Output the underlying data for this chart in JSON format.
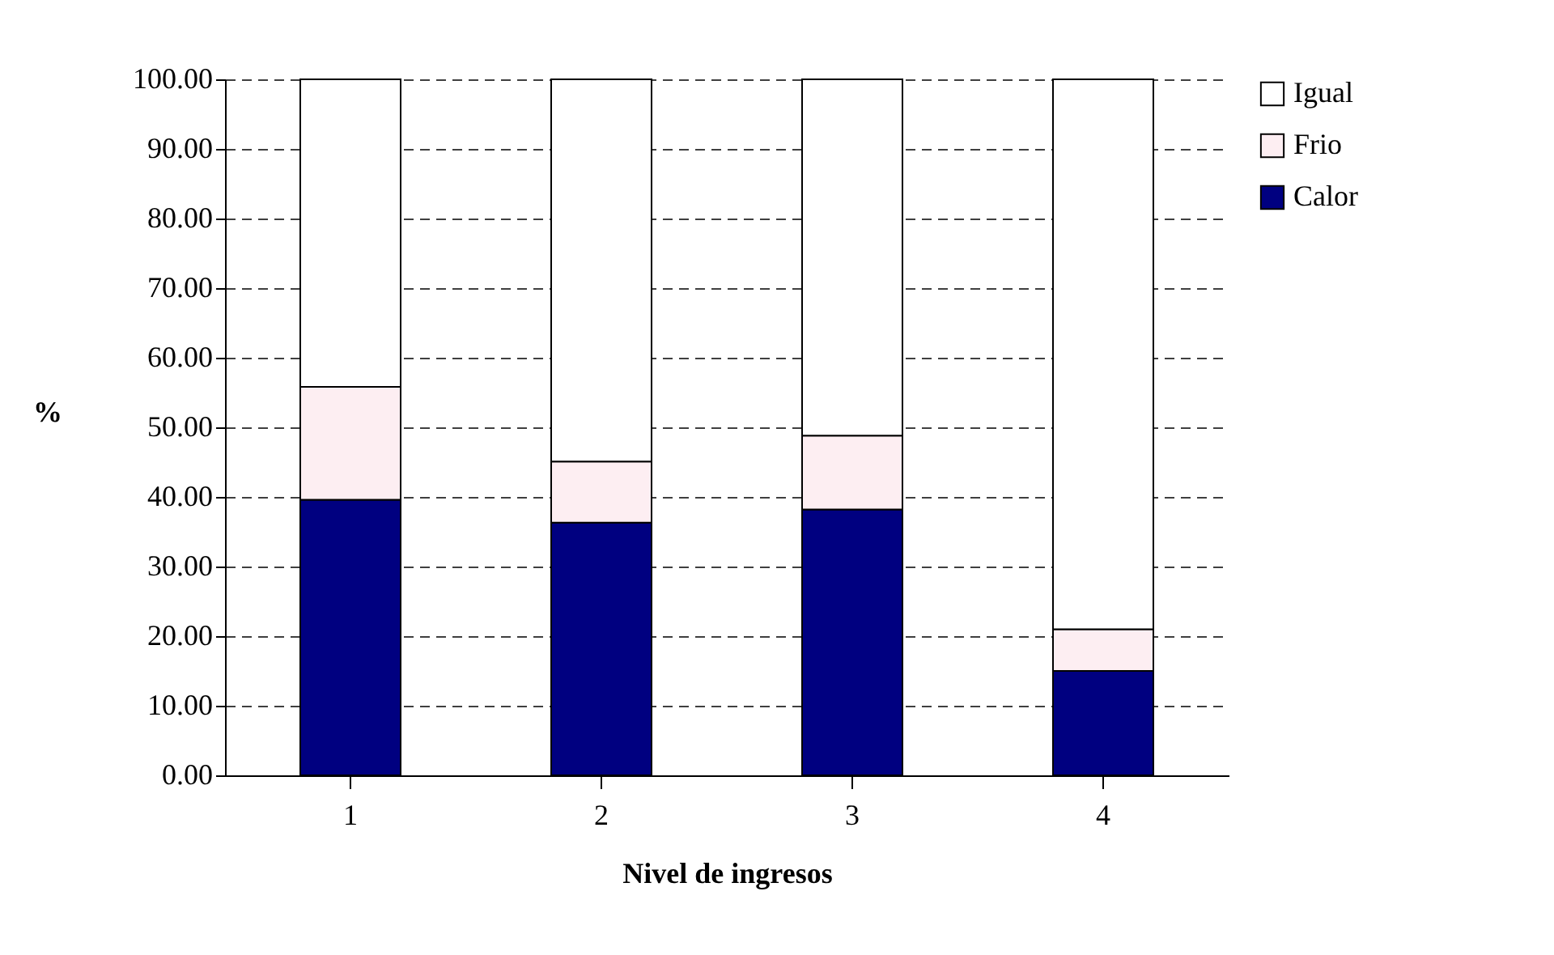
{
  "chart_data": {
    "type": "bar",
    "xlabel": "Nivel de ingresos",
    "ylabel": "%",
    "categories": [
      "1",
      "2",
      "3",
      "4"
    ],
    "stacked": true,
    "series": [
      {
        "name": "Calor",
        "color": "#000080",
        "values": [
          39.6,
          36.3,
          38.2,
          15.0
        ]
      },
      {
        "name": "Frio",
        "color": "#fdeef2",
        "values": [
          16.2,
          8.8,
          10.6,
          6.0
        ]
      },
      {
        "name": "Igual",
        "color": "#ffffff",
        "values": [
          44.2,
          54.9,
          51.2,
          79.0
        ]
      }
    ],
    "ylim": [
      0,
      100
    ],
    "yticks": [
      {
        "value": 0,
        "label": "0.00"
      },
      {
        "value": 10,
        "label": "10.00"
      },
      {
        "value": 20,
        "label": "20.00"
      },
      {
        "value": 30,
        "label": "30.00"
      },
      {
        "value": 40,
        "label": "40.00"
      },
      {
        "value": 50,
        "label": "50.00"
      },
      {
        "value": 60,
        "label": "60.00"
      },
      {
        "value": 70,
        "label": "70.00"
      },
      {
        "value": 80,
        "label": "80.00"
      },
      {
        "value": 90,
        "label": "90.00"
      },
      {
        "value": 100,
        "label": "100.00"
      }
    ],
    "grid": "y",
    "legend": "right"
  }
}
